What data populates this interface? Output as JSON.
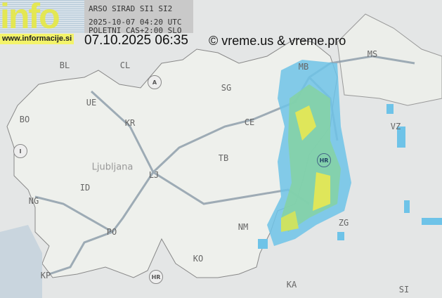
{
  "logo": {
    "text": "info",
    "url": "www.informacije.si"
  },
  "header": {
    "source": "ARSO SIRAD SI1 SI2",
    "utc_time": "2025-10-07 04:20 UTC",
    "local_note": "POLETNI CAS+2:00 SLO"
  },
  "timestamp": "07.10.2025 06:35",
  "copyright": "© vreme.us & vreme.pro",
  "map": {
    "capital_name": "Ljubljana",
    "city_codes": [
      "BL",
      "CL",
      "MS",
      "MB",
      "SG",
      "UE",
      "BO",
      "KR",
      "CE",
      "VZ",
      "TB",
      "LJ",
      "ID",
      "NG",
      "PO",
      "NM",
      "ZG",
      "KO",
      "KP",
      "KA",
      "SI"
    ],
    "country_codes": [
      "A",
      "I",
      "HR",
      "HR"
    ]
  },
  "colors": {
    "radar_light": "#6ec3e8",
    "radar_mid": "#7fd0a0",
    "radar_high": "#e6e85a",
    "land": "#eef0ec",
    "background": "#e4e6e6"
  }
}
